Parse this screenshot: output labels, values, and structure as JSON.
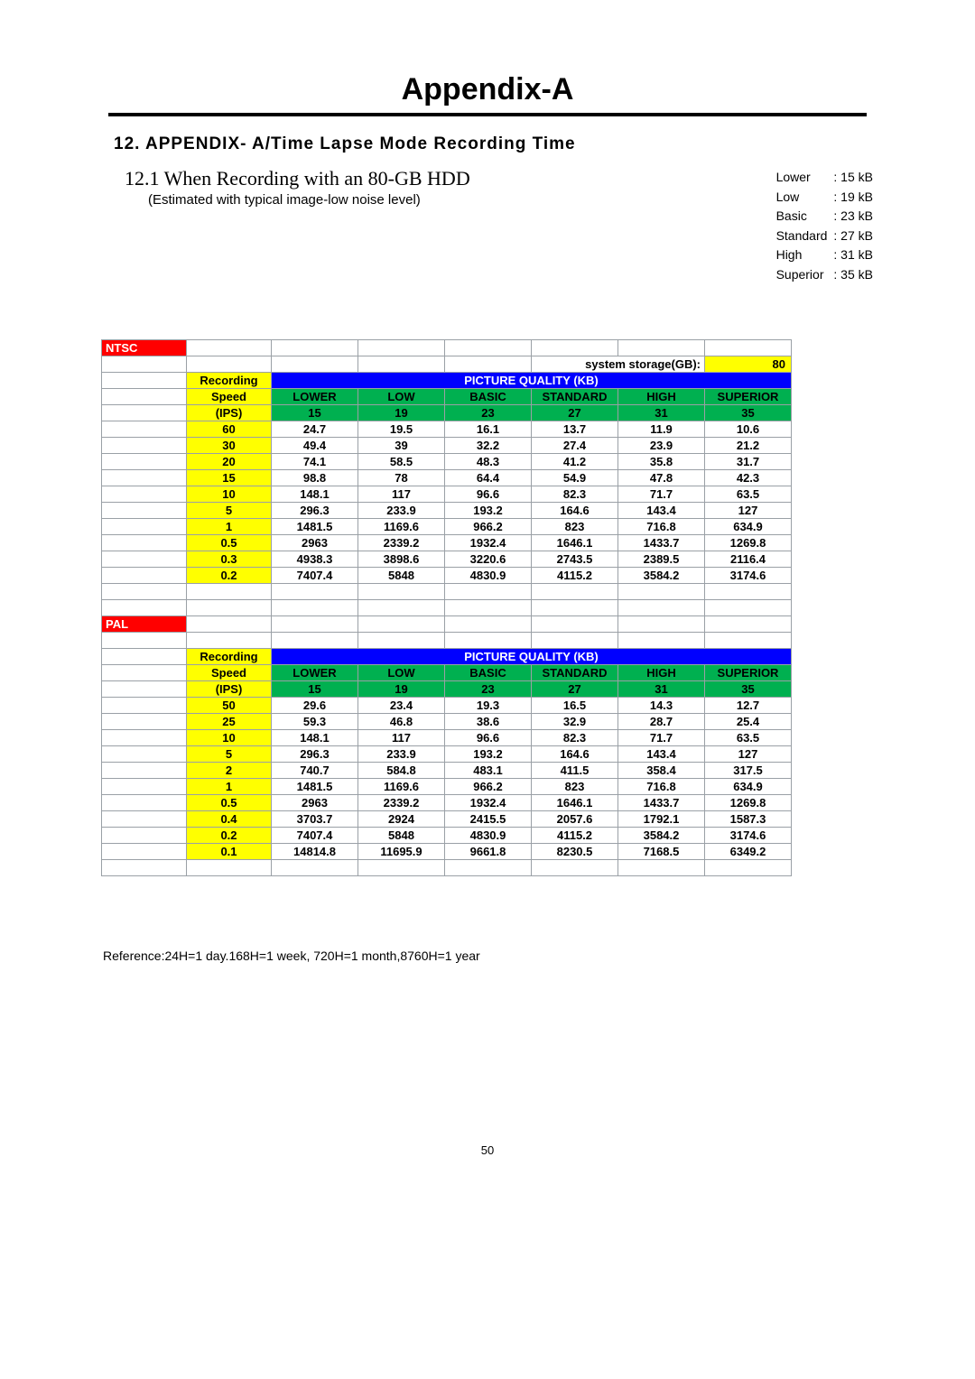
{
  "header": {
    "appendix_title": "Appendix-A",
    "section_title": "12. APPENDIX- A/Time Lapse Mode Recording Time",
    "sub_title": "12.1 When Recording with an 80-GB HDD",
    "sub_note": "(Estimated with typical image-low noise level)"
  },
  "kb_legend": [
    {
      "label": "Lower",
      "value": ": 15 kB"
    },
    {
      "label": "Low",
      "value": ": 19 kB"
    },
    {
      "label": "Basic",
      "value": ": 23 kB"
    },
    {
      "label": "Standard",
      "value": ": 27 kB"
    },
    {
      "label": "High",
      "value": ": 31 kB"
    },
    {
      "label": "Superior",
      "value": ": 35 kB"
    }
  ],
  "colors": {
    "red_header": "#ff0000",
    "red_text": "#ffffff",
    "yellow": "#ffff00",
    "blue": "#0000ff",
    "blue_text": "#ffffff",
    "green": "#00b050",
    "pale_green": "#00ff00",
    "border": "#9aa0a6"
  },
  "storage": {
    "label": "system storage(GB):",
    "value": "80"
  },
  "quality_header": "PICTURE QUALITY (KB)",
  "speed_header_1": "Recording",
  "speed_header_2": "Speed",
  "speed_header_3": "(IPS)",
  "quality_cols": [
    "LOWER",
    "LOW",
    "BASIC",
    "STANDARD",
    "HIGH",
    "SUPERIOR"
  ],
  "quality_kb": [
    "15",
    "19",
    "23",
    "27",
    "31",
    "35"
  ],
  "ntsc": {
    "tag": "NTSC",
    "rows": [
      {
        "ips": "60",
        "v": [
          "24.7",
          "19.5",
          "16.1",
          "13.7",
          "11.9",
          "10.6"
        ]
      },
      {
        "ips": "30",
        "v": [
          "49.4",
          "39",
          "32.2",
          "27.4",
          "23.9",
          "21.2"
        ]
      },
      {
        "ips": "20",
        "v": [
          "74.1",
          "58.5",
          "48.3",
          "41.2",
          "35.8",
          "31.7"
        ]
      },
      {
        "ips": "15",
        "v": [
          "98.8",
          "78",
          "64.4",
          "54.9",
          "47.8",
          "42.3"
        ]
      },
      {
        "ips": "10",
        "v": [
          "148.1",
          "117",
          "96.6",
          "82.3",
          "71.7",
          "63.5"
        ]
      },
      {
        "ips": "5",
        "v": [
          "296.3",
          "233.9",
          "193.2",
          "164.6",
          "143.4",
          "127"
        ]
      },
      {
        "ips": "1",
        "v": [
          "1481.5",
          "1169.6",
          "966.2",
          "823",
          "716.8",
          "634.9"
        ]
      },
      {
        "ips": "0.5",
        "v": [
          "2963",
          "2339.2",
          "1932.4",
          "1646.1",
          "1433.7",
          "1269.8"
        ]
      },
      {
        "ips": "0.3",
        "v": [
          "4938.3",
          "3898.6",
          "3220.6",
          "2743.5",
          "2389.5",
          "2116.4"
        ]
      },
      {
        "ips": "0.2",
        "v": [
          "7407.4",
          "5848",
          "4830.9",
          "4115.2",
          "3584.2",
          "3174.6"
        ]
      }
    ]
  },
  "pal": {
    "tag": "PAL",
    "rows": [
      {
        "ips": "50",
        "v": [
          "29.6",
          "23.4",
          "19.3",
          "16.5",
          "14.3",
          "12.7"
        ]
      },
      {
        "ips": "25",
        "v": [
          "59.3",
          "46.8",
          "38.6",
          "32.9",
          "28.7",
          "25.4"
        ]
      },
      {
        "ips": "10",
        "v": [
          "148.1",
          "117",
          "96.6",
          "82.3",
          "71.7",
          "63.5"
        ]
      },
      {
        "ips": "5",
        "v": [
          "296.3",
          "233.9",
          "193.2",
          "164.6",
          "143.4",
          "127"
        ]
      },
      {
        "ips": "2",
        "v": [
          "740.7",
          "584.8",
          "483.1",
          "411.5",
          "358.4",
          "317.5"
        ]
      },
      {
        "ips": "1",
        "v": [
          "1481.5",
          "1169.6",
          "966.2",
          "823",
          "716.8",
          "634.9"
        ]
      },
      {
        "ips": "0.5",
        "v": [
          "2963",
          "2339.2",
          "1932.4",
          "1646.1",
          "1433.7",
          "1269.8"
        ]
      },
      {
        "ips": "0.4",
        "v": [
          "3703.7",
          "2924",
          "2415.5",
          "2057.6",
          "1792.1",
          "1587.3"
        ]
      },
      {
        "ips": "0.2",
        "v": [
          "7407.4",
          "5848",
          "4830.9",
          "4115.2",
          "3584.2",
          "3174.6"
        ]
      },
      {
        "ips": "0.1",
        "v": [
          "14814.8",
          "11695.9",
          "9661.8",
          "8230.5",
          "7168.5",
          "6349.2"
        ]
      }
    ]
  },
  "reference": "Reference:24H=1 day.168H=1 week, 720H=1 month,8760H=1 year",
  "page_number": "50"
}
